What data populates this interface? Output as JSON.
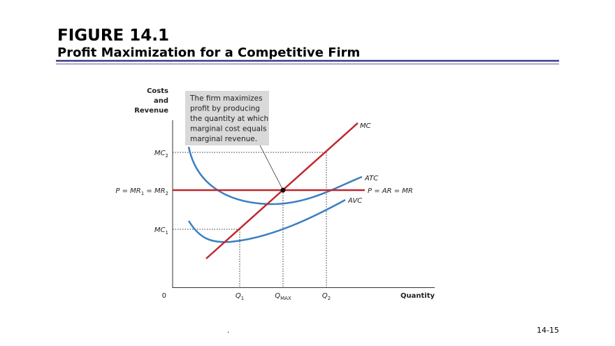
{
  "header": {
    "figure": "FIGURE 14.1",
    "title": "Profit Maximization for a Competitive Firm"
  },
  "diagram": {
    "y_axis_label": [
      "Costs",
      "and",
      "Revenue"
    ],
    "x_axis_label": "Quantity",
    "origin": "0",
    "callout": [
      "The firm maximizes",
      "profit by producing",
      "the quantity at which",
      "marginal cost equals",
      "marginal revenue."
    ],
    "labels": [
      [
        {
          "text": "MC"
        }
      ],
      [
        {
          "text": "ATC"
        }
      ],
      [
        {
          "text": "AVC"
        }
      ],
      [
        {
          "text": "P = AR = MR"
        }
      ],
      [
        {
          "text": "MC"
        },
        {
          "sub": "2"
        }
      ],
      [
        {
          "text": "P = MR"
        },
        {
          "sub": "1"
        },
        {
          "text": " = MR"
        },
        {
          "sub": "2"
        }
      ],
      [
        {
          "text": "MC"
        },
        {
          "sub": "1"
        }
      ],
      [
        {
          "text": "Q"
        },
        {
          "sub": "1"
        }
      ],
      [
        {
          "text": "Q"
        },
        {
          "sub": "MAX"
        }
      ],
      [
        {
          "text": "Q"
        },
        {
          "sub": "2"
        }
      ]
    ]
  },
  "footer": {
    "note": ".",
    "page": "14-15"
  }
}
